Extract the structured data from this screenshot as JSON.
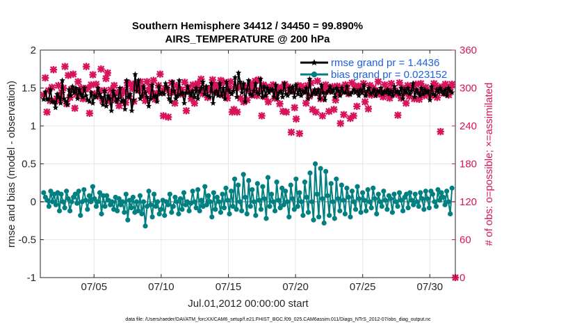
{
  "chart_data": {
    "type": "line",
    "title": "Southern Hemisphere 34412 / 34450 = 99.890%",
    "subtitle": "AIRS_TEMPERATURE @ 200 hPa",
    "xlabel": "Jul.01,2012 00:00:00 start",
    "ylabel": "rmse and bias (model - observation)",
    "ylabel_right": "# of obs: o=possible; ×=assimilated",
    "footnote": "data file: /Users/raeder/DAI/ATM_forcXX/CAM6_setup/f.e21.FHIST_BGC.f09_025.CAM6assim.011/Diags_NTrS_2012-07/obs_diag_output.nc",
    "x_range": [
      1.0,
      31.9
    ],
    "ylim": [
      -1,
      2
    ],
    "ylim_right": [
      0,
      360
    ],
    "x_ticks": [
      5,
      10,
      15,
      20,
      25,
      30
    ],
    "x_tick_labels": [
      "07/05",
      "07/10",
      "07/15",
      "07/20",
      "07/25",
      "07/30"
    ],
    "y_ticks": [
      -1,
      -0.5,
      0,
      0.5,
      1,
      1.5,
      2
    ],
    "y_tick_labels": [
      "-1",
      "-0.5",
      "0",
      "0.5",
      "1",
      "1.5",
      "2"
    ],
    "y_ticks_right": [
      0,
      60,
      120,
      180,
      240,
      300,
      360
    ],
    "y_tick_labels_right": [
      "0",
      "60",
      "120",
      "180",
      "240",
      "300",
      "360"
    ],
    "zero_line": 0,
    "grid": true,
    "series": [
      {
        "name": "rmse",
        "legend": "rmse grand pr = 1.4436",
        "color": "#000000",
        "marker": "pentagram",
        "values": [
          1.35,
          1.45,
          1.35,
          1.35,
          1.48,
          1.32,
          1.32,
          1.24,
          1.42,
          1.38,
          1.3,
          1.6,
          1.36,
          1.32,
          1.28,
          1.48,
          1.4,
          1.52,
          1.44,
          1.5,
          1.36,
          1.48,
          1.42,
          1.38,
          1.5,
          1.4,
          1.34,
          1.32,
          1.44,
          1.3,
          1.4,
          1.38,
          1.5,
          1.42,
          1.38,
          1.28,
          1.46,
          1.26,
          1.4,
          1.36,
          1.2,
          1.46,
          1.4,
          1.32,
          1.36,
          1.5,
          1.32,
          1.34,
          1.22,
          1.6,
          1.38,
          1.42,
          1.2,
          1.34,
          1.68,
          1.46,
          1.6,
          1.36,
          1.4,
          1.52,
          1.44,
          1.38,
          1.26,
          1.36,
          1.54,
          1.38,
          1.4,
          1.32,
          1.52,
          1.42,
          1.44,
          1.42,
          1.56,
          1.5,
          1.36,
          1.32,
          1.58,
          1.46,
          1.36,
          1.4,
          1.6,
          1.42,
          1.44,
          1.3,
          1.44,
          1.52,
          1.44,
          1.4,
          1.46,
          1.38,
          1.5,
          1.36,
          1.46,
          1.5,
          1.58,
          1.42,
          1.52,
          1.4,
          1.38,
          1.56,
          1.3,
          1.44,
          1.46,
          1.4,
          1.56,
          1.4,
          1.5,
          1.36,
          1.58,
          1.48,
          1.44,
          1.42,
          1.46,
          1.64,
          1.38,
          1.7,
          1.58,
          1.44,
          1.56,
          1.32,
          1.48,
          1.6,
          1.42,
          1.4,
          1.46,
          1.56,
          1.44,
          1.42,
          1.62,
          1.38,
          1.52,
          1.4,
          1.5,
          1.44,
          1.48,
          1.48,
          1.38,
          1.54,
          1.36,
          1.44,
          1.46,
          1.38,
          1.56,
          1.42,
          1.4,
          1.5,
          1.44,
          1.52,
          1.38,
          1.54,
          1.42,
          1.48,
          1.4,
          1.46,
          1.44,
          1.5,
          1.36,
          1.62,
          1.4,
          1.44,
          1.48,
          1.42,
          1.48,
          1.36,
          1.54,
          1.44,
          1.34,
          1.44,
          1.46,
          1.52,
          1.44,
          1.48,
          1.38,
          1.5,
          1.46,
          1.4,
          1.5,
          1.44,
          1.44,
          1.52,
          1.42,
          1.42,
          1.44,
          1.48,
          1.44,
          1.46,
          1.4,
          1.48,
          1.44,
          1.54,
          1.4,
          1.46,
          1.5,
          1.42,
          1.44,
          1.48,
          1.4,
          1.46,
          1.44,
          1.5,
          1.42,
          1.46,
          1.44,
          1.48,
          1.42,
          1.46,
          1.4,
          1.52,
          1.44,
          1.46,
          1.42,
          1.5,
          1.36,
          1.48,
          1.44,
          1.5,
          1.42,
          1.46,
          1.56,
          1.38,
          1.48,
          1.44,
          1.4,
          1.5,
          1.42,
          1.48,
          1.44,
          1.46,
          1.34,
          1.52,
          1.42,
          1.4,
          1.48,
          1.44,
          1.5,
          1.46,
          1.42,
          1.48,
          1.4,
          1.5,
          1.46,
          1.44
        ]
      },
      {
        "name": "bias",
        "legend": "bias grand pr = 0.023152",
        "color": "#008080",
        "marker": "circle",
        "values": [
          0.12,
          0.06,
          0.02,
          -0.06,
          0.14,
          0.0,
          0.1,
          -0.04,
          0.12,
          -0.12,
          0.1,
          0.0,
          -0.08,
          0.14,
          0.04,
          -0.12,
          0.0,
          0.06,
          0.1,
          -0.02,
          0.14,
          -0.18,
          0.0,
          0.16,
          0.02,
          -0.1,
          0.08,
          0.0,
          0.2,
          0.04,
          -0.06,
          0.0,
          0.12,
          -0.16,
          0.08,
          -0.06,
          0.08,
          0.02,
          -0.04,
          0.0,
          -0.1,
          0.06,
          -0.12,
          0.04,
          -0.04,
          0.0,
          -0.14,
          0.1,
          -0.24,
          0.02,
          -0.08,
          0.06,
          -0.14,
          0.0,
          -0.12,
          0.08,
          -0.16,
          0.0,
          -0.32,
          -0.06,
          0.14,
          -0.04,
          -0.2,
          0.1,
          -0.06,
          0.0,
          -0.16,
          -0.1,
          0.02,
          -0.18,
          0.0,
          -0.04,
          0.1,
          -0.14,
          -0.06,
          0.06,
          0.0,
          -0.16,
          0.04,
          -0.1,
          0.12,
          -0.04,
          0.0,
          -0.12,
          -0.02,
          0.14,
          0.0,
          -0.08,
          0.16,
          -0.12,
          0.02,
          -0.06,
          0.2,
          -0.04,
          0.08,
          0.0,
          -0.2,
          0.12,
          -0.1,
          0.06,
          0.0,
          -0.14,
          0.1,
          -0.08,
          0.18,
          0.02,
          -0.16,
          0.14,
          -0.06,
          0.3,
          -0.1,
          0.22,
          0.0,
          -0.12,
          0.36,
          0.06,
          -0.16,
          0.28,
          -0.06,
          0.16,
          0.0,
          -0.18,
          0.24,
          0.02,
          -0.1,
          0.2,
          0.04,
          -0.22,
          0.32,
          -0.06,
          0.1,
          0.0,
          -0.12,
          0.26,
          0.02,
          -0.08,
          0.18,
          -0.04,
          0.14,
          0.0,
          -0.2,
          0.22,
          0.04,
          -0.1,
          0.3,
          -0.06,
          0.12,
          0.0,
          -0.18,
          0.26,
          0.06,
          -0.14,
          0.38,
          0.0,
          -0.24,
          0.5,
          0.1,
          -0.2,
          0.44,
          0.04,
          -0.28,
          0.4,
          0.08,
          -0.18,
          0.24,
          0.0,
          -0.22,
          0.3,
          0.04,
          -0.12,
          0.22,
          0.02,
          -0.16,
          0.18,
          0.06,
          -0.2,
          0.14,
          0.0,
          -0.1,
          0.2,
          0.04,
          -0.14,
          0.12,
          0.02,
          -0.12,
          0.16,
          0.0,
          -0.08,
          0.18,
          0.04,
          -0.16,
          0.1,
          0.0,
          -0.06,
          0.14,
          0.02,
          -0.1,
          0.08,
          0.04,
          -0.14,
          0.1,
          0.0,
          -0.06,
          0.12,
          0.02,
          -0.12,
          0.06,
          0.1,
          -0.08,
          0.12,
          0.02,
          -0.04,
          0.1,
          0.0,
          -0.06,
          0.12,
          0.04,
          -0.1,
          0.14,
          0.04,
          -0.08,
          0.14,
          0.1,
          0.0,
          -0.06,
          0.16,
          0.02,
          0.12,
          0.06,
          -0.04,
          0.14,
          0.0,
          -0.16,
          0.18
        ]
      },
      {
        "name": "obs_possible",
        "color": "#d6135b",
        "marker": "cross",
        "axis": "right",
        "values": [
          289,
          316,
          262,
          296,
          280,
          301,
          329,
          279,
          283,
          304,
          283,
          293,
          300,
          334,
          275,
          320,
          285,
          298,
          322,
          268,
          290,
          310,
          296,
          300,
          283,
          298,
          334,
          300,
          260,
          305,
          321,
          291,
          306,
          287,
          296,
          330,
          280,
          296,
          315,
          324,
          279,
          297,
          287,
          304,
          281,
          293,
          272,
          288,
          297,
          294,
          277,
          308,
          287,
          306,
          299,
          279,
          307,
          300,
          296,
          310,
          300,
          288,
          280,
          310,
          296,
          301,
          291,
          312,
          282,
          292,
          304,
          322,
          294,
          256,
          299,
          300,
          254,
          293,
          308,
          294,
          276,
          304,
          290,
          297,
          297,
          290,
          309,
          264,
          301,
          295,
          283,
          305,
          276,
          301,
          307,
          297,
          314,
          291,
          296,
          300,
          285,
          299,
          297,
          313,
          305,
          296,
          292,
          304,
          312,
          289,
          309,
          292,
          284,
          300,
          310,
          262,
          266,
          302,
          262,
          301,
          284,
          303,
          278,
          302,
          281,
          296,
          307,
          289,
          300,
          311,
          288,
          313,
          296,
          256,
          305,
          286,
          302,
          278,
          300,
          298,
          305,
          284,
          292,
          301,
          275,
          299,
          263,
          306,
          262,
          302,
          296,
          230,
          296,
          269,
          251,
          304,
          228,
          303,
          300,
          295,
          276,
          304,
          287,
          308,
          266,
          293,
          262,
          311,
          295,
          283,
          256,
          301,
          305,
          295,
          263,
          297,
          302,
          266,
          281,
          303,
          291,
          244,
          301,
          258,
          305,
          299,
          291,
          252,
          308,
          256,
          302,
          271,
          303,
          294,
          299,
          307,
          278,
          290,
          267,
          304,
          289,
          300,
          296,
          290,
          310,
          295,
          290,
          286,
          305,
          292,
          297,
          284,
          307,
          295,
          296,
          290,
          257,
          308,
          284,
          300,
          292,
          276,
          304,
          287,
          300,
          302,
          283,
          306,
          295,
          282,
          307,
          293,
          288,
          301,
          294,
          290,
          288,
          298,
          307,
          304,
          285,
          299,
          231,
          302,
          292,
          306,
          298,
          289,
          301,
          306
        ]
      },
      {
        "name": "obs_assimilated",
        "color": "#d6135b",
        "marker": "star",
        "axis": "right"
      }
    ]
  }
}
